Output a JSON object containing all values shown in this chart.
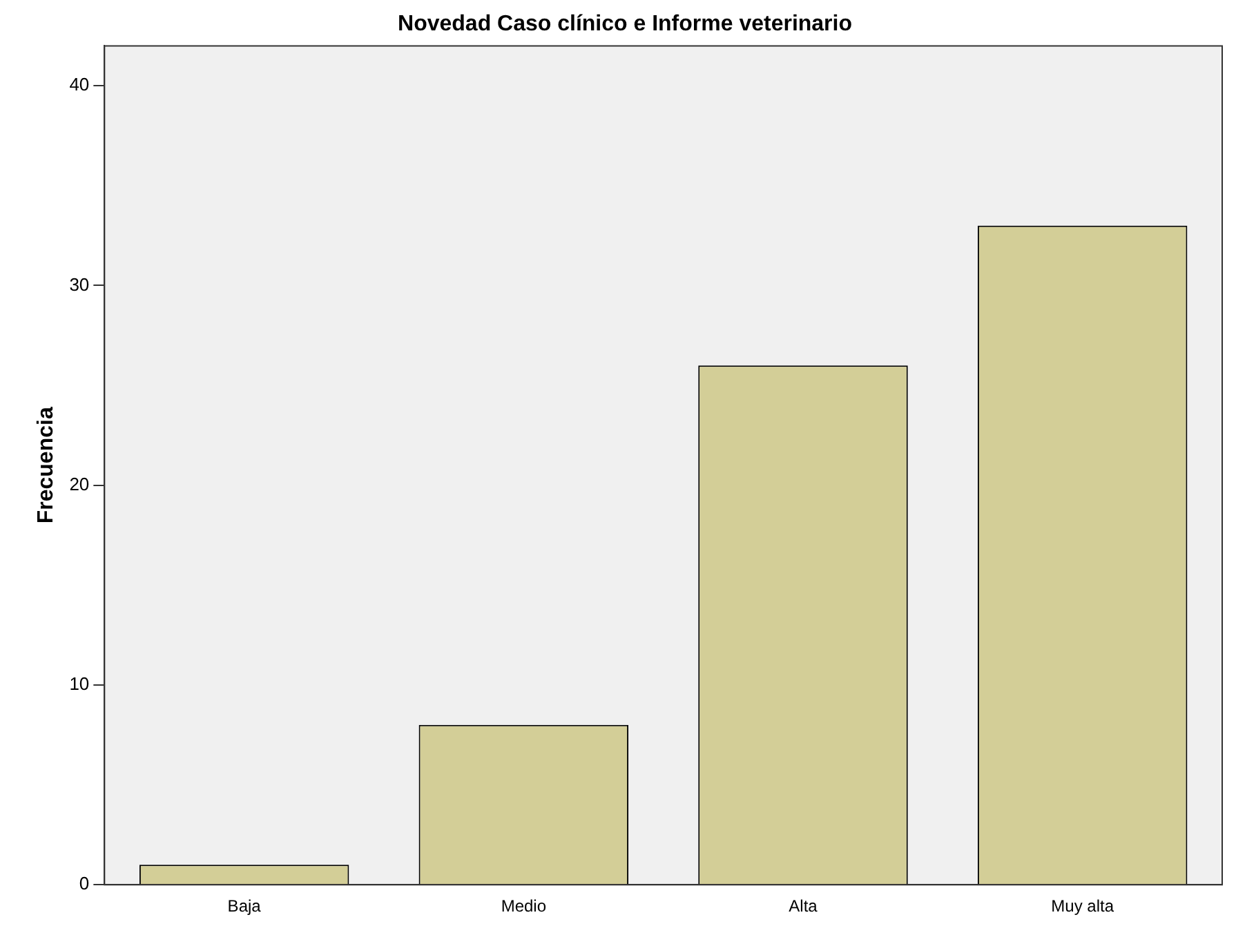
{
  "chart_data": {
    "type": "bar",
    "title": "Novedad Caso clínico e Informe veterinario",
    "ylabel": "Frecuencia",
    "categories": [
      "Baja",
      "Medio",
      "Alta",
      "Muy alta"
    ],
    "values": [
      1,
      8,
      26,
      33
    ],
    "color": "#d3ce97",
    "ylim": [
      0,
      42
    ],
    "yticks": [
      0,
      10,
      20,
      30,
      40
    ],
    "grid": false,
    "legend": false
  }
}
